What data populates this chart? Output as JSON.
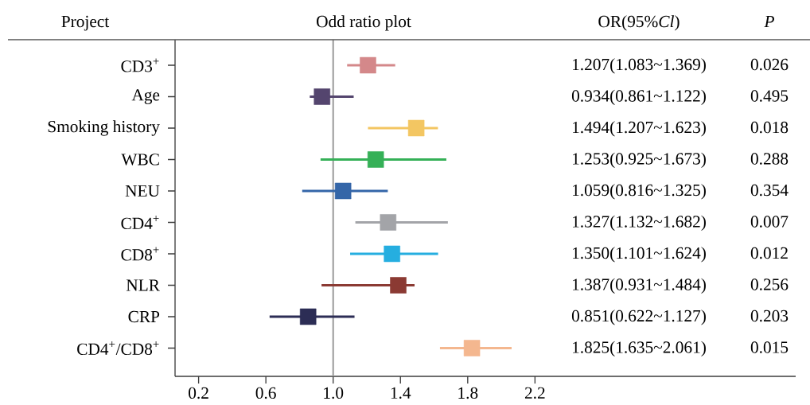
{
  "chart_data": {
    "type": "scatter",
    "orientation": "horizontal",
    "title": "Odd ratio plot",
    "ylabel": "Project",
    "categories": [
      "CD3$^{+}$",
      "Age",
      "Smoking history",
      "WBC",
      "NEU",
      "CD4$^{+}$",
      "CD8$^{+}$",
      "NLR",
      "CRP",
      "CD4$^{+}$/CD8$^{+}$"
    ],
    "values": [
      1.207,
      0.934,
      1.494,
      1.253,
      1.059,
      1.327,
      1.35,
      1.387,
      0.851,
      1.825
    ],
    "errors": [
      [
        1.083,
        1.369
      ],
      [
        0.861,
        1.122
      ],
      [
        1.207,
        1.623
      ],
      [
        0.925,
        1.673
      ],
      [
        0.816,
        1.325
      ],
      [
        1.132,
        1.682
      ],
      [
        1.101,
        1.624
      ],
      [
        0.931,
        1.484
      ],
      [
        0.622,
        1.127
      ],
      [
        1.635,
        2.061
      ]
    ],
    "colors": [
      "#d4888a",
      "#54456e",
      "#f3c662",
      "#35b057",
      "#3466a8",
      "#a3a4a8",
      "#25aee0",
      "#8b3a33",
      "#2c2d55",
      "#f4b78f"
    ],
    "annotations": [
      "OR(95%*Cl*)",
      "P",
      "1.207(1.083~1.369)",
      "0.026",
      "0.934(0.861~1.122)",
      "0.495",
      "1.494(1.207~1.623)",
      "0.018",
      "1.253(0.925~1.673)",
      "0.288",
      "1.059(0.816~1.325)",
      "0.354",
      "1.327(1.132~1.682)",
      "0.007",
      "1.350(1.101~1.624)",
      "0.012",
      "1.387(0.931~1.484)",
      "0.256",
      "0.851(0.622~1.127)",
      "0.203",
      "1.825(1.635~2.061)",
      "0.015"
    ],
    "marker": "square",
    "ref_lines": [
      {
        "axis": "x",
        "value": 1,
        "color": "#9a9a9a"
      }
    ],
    "xlim": [
      0.06,
      3.75
    ],
    "xticks": [
      0.2,
      0.6,
      {
        "value": 1,
        "label": "1.0"
      },
      1.4,
      1.8,
      2.2
    ]
  }
}
